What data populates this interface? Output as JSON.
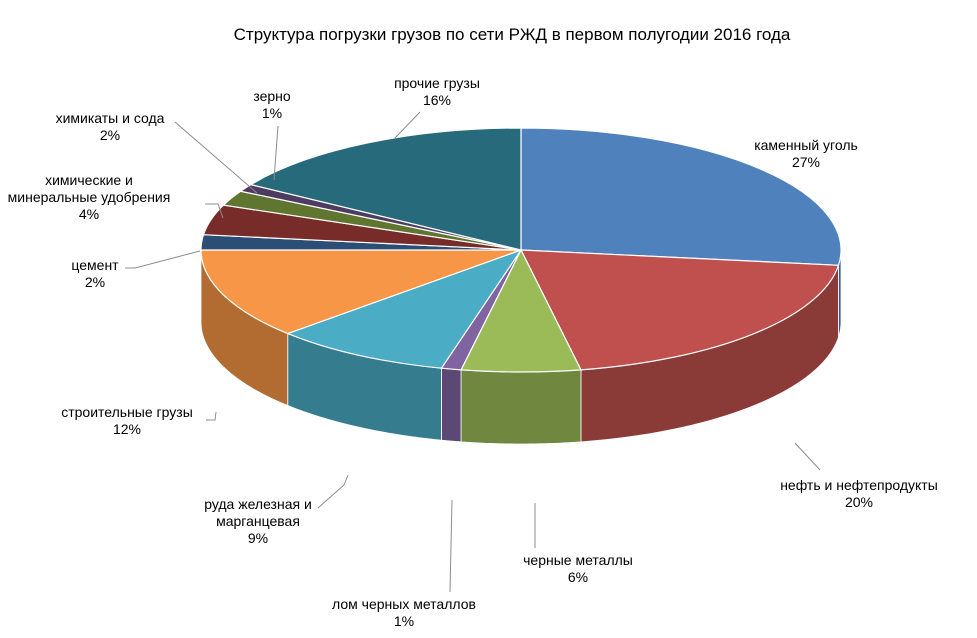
{
  "chart_data": {
    "type": "pie",
    "title": "Структура погрузки грузов по сети РЖД в первом полугодии 2016 года",
    "unit": "%",
    "slices": [
      {
        "label": [
          "каменный уголь"
        ],
        "value": 27,
        "display": "27%",
        "color": "#4f81bd"
      },
      {
        "label": [
          "нефть и нефтепродукты"
        ],
        "value": 20,
        "display": "20%",
        "color": "#c0504d"
      },
      {
        "label": [
          "черные металлы"
        ],
        "value": 6,
        "display": "6%",
        "color": "#9bbb59"
      },
      {
        "label": [
          "лом черных металлов"
        ],
        "value": 1,
        "display": "1%",
        "color": "#8064a2"
      },
      {
        "label": [
          "руда железная и",
          "марганцевая"
        ],
        "value": 9,
        "display": "9%",
        "color": "#4bacc6"
      },
      {
        "label": [
          "строительные грузы"
        ],
        "value": 12,
        "display": "12%",
        "color": "#f79646"
      },
      {
        "label": [
          "цемент"
        ],
        "value": 2,
        "display": "2%",
        "color": "#2c4d75"
      },
      {
        "label": [
          "химические и",
          "минеральные удобрения"
        ],
        "value": 4,
        "display": "4%",
        "color": "#772c2a"
      },
      {
        "label": [
          "химикаты и сода"
        ],
        "value": 2,
        "display": "2%",
        "color": "#5f7530"
      },
      {
        "label": [
          "зерно"
        ],
        "value": 1,
        "display": "1%",
        "color": "#4d3b62"
      },
      {
        "label": [
          "прочие грузы"
        ],
        "value": 16,
        "display": "16%",
        "color": "#276a7c"
      }
    ]
  }
}
